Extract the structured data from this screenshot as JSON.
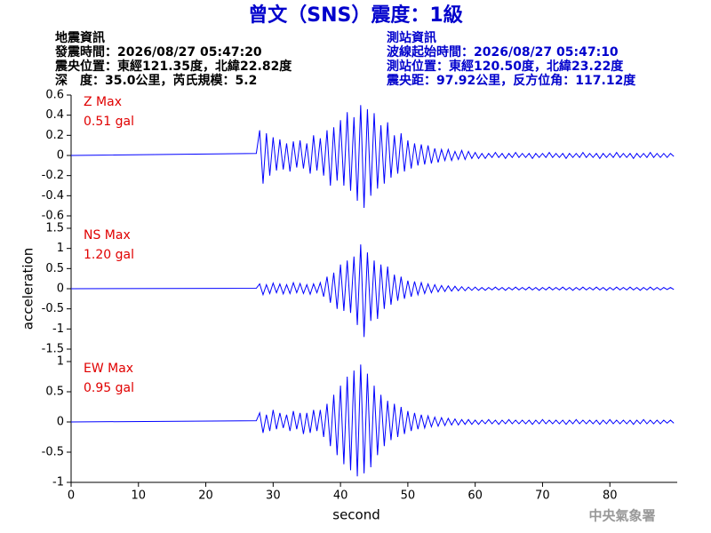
{
  "header": {
    "title": "曾文（SNS）震度：1級",
    "left": [
      "地震資訊",
      "發震時間：2026/08/27 05:47:20",
      "震央位置：東經121.35度，北緯22.82度",
      "深　度：35.0公里，芮氏規模：5.2"
    ],
    "right": [
      "測站資訊",
      "波線起始時間：2026/08/27 05:47:10",
      "測站位置：東經120.50度，北緯23.22度",
      "震央距：97.92公里，反方位角：117.12度"
    ]
  },
  "agency": "中央氣象署",
  "chart_data": [
    {
      "type": "line",
      "label": "Z Max",
      "peak_label": "0.51 gal",
      "color": "#0000ff",
      "xlim": [
        0,
        90
      ],
      "ylim": [
        -0.6,
        0.6
      ],
      "yticks": [
        0.6,
        0.4,
        0.2,
        0,
        -0.2,
        -0.4,
        -0.6
      ],
      "x": [
        0,
        27.5,
        28,
        28.5,
        29,
        29.5,
        30,
        30.5,
        31,
        31.5,
        32,
        32.5,
        33,
        33.5,
        34,
        34.5,
        35,
        35.5,
        36,
        36.5,
        37,
        37.5,
        38,
        38.5,
        39,
        39.5,
        40,
        40.5,
        41,
        41.5,
        42,
        42.5,
        43,
        43.5,
        44,
        44.5,
        45,
        45.5,
        46,
        46.5,
        47,
        47.5,
        48,
        48.5,
        49,
        49.5,
        50,
        50.5,
        51,
        51.5,
        52,
        52.5,
        53,
        53.5,
        54,
        54.5,
        55,
        55.5,
        56,
        56.5,
        57,
        57.5,
        58,
        58.5,
        59,
        59.5,
        60,
        60.5,
        61,
        61.5,
        62,
        62.5,
        63,
        63.5,
        64,
        64.5,
        65,
        65.5,
        66,
        66.5,
        67,
        67.5,
        68,
        68.5,
        69,
        69.5,
        70,
        70.5,
        71,
        71.5,
        72,
        72.5,
        73,
        73.5,
        74,
        74.5,
        75,
        75.5,
        76,
        76.5,
        77,
        77.5,
        78,
        78.5,
        79,
        79.5,
        80,
        80.5,
        81,
        81.5,
        82,
        82.5,
        83,
        83.5,
        84,
        84.5,
        85,
        85.5,
        86,
        86.5,
        87,
        87.5,
        88,
        88.5,
        89,
        89.5
      ],
      "values": [
        0,
        0.02,
        0.25,
        -0.28,
        0.22,
        -0.2,
        0.18,
        -0.15,
        0.16,
        -0.14,
        0.12,
        -0.16,
        0.14,
        -0.12,
        0.15,
        -0.13,
        0.12,
        -0.18,
        0.2,
        -0.15,
        0.17,
        -0.2,
        0.25,
        -0.3,
        0.28,
        -0.25,
        0.35,
        -0.3,
        0.43,
        -0.35,
        0.38,
        -0.45,
        0.5,
        -0.52,
        0.46,
        -0.4,
        0.42,
        -0.33,
        0.3,
        -0.28,
        0.33,
        -0.22,
        0.2,
        -0.18,
        0.22,
        -0.16,
        0.15,
        -0.13,
        0.12,
        -0.1,
        0.11,
        -0.09,
        0.1,
        -0.08,
        0.07,
        -0.07,
        0.06,
        -0.05,
        0.06,
        -0.05,
        0.04,
        -0.04,
        0.05,
        -0.04,
        0.04,
        -0.03,
        0.03,
        -0.03,
        0.02,
        -0.03,
        0.02,
        -0.02,
        0.03,
        -0.02,
        0.02,
        -0.03,
        0.02,
        -0.02,
        0.03,
        -0.02,
        0.02,
        -0.02,
        0.02,
        -0.03,
        0.02,
        -0.02,
        0.02,
        -0.02,
        0.03,
        -0.02,
        0.02,
        -0.02,
        0.02,
        -0.03,
        0.02,
        -0.02,
        0.02,
        -0.02,
        0.03,
        -0.02,
        0.02,
        -0.02,
        0.02,
        -0.03,
        0.02,
        -0.02,
        0.02,
        -0.02,
        0.03,
        -0.02,
        0.02,
        -0.02,
        0.02,
        -0.03,
        0.02,
        -0.02,
        0.02,
        -0.02,
        0.03,
        -0.02,
        0.02,
        -0.02,
        0.02,
        -0.02,
        0.02,
        -0.01
      ]
    },
    {
      "type": "line",
      "label": "NS Max",
      "peak_label": "1.20 gal",
      "color": "#0000ff",
      "ylabel": "acceleration",
      "xlim": [
        0,
        90
      ],
      "ylim": [
        -1.5,
        1.5
      ],
      "yticks": [
        1.5,
        1,
        0.5,
        0,
        -0.5,
        -1,
        -1.5
      ],
      "x": [
        0,
        27.5,
        28,
        28.5,
        29,
        29.5,
        30,
        30.5,
        31,
        31.5,
        32,
        32.5,
        33,
        33.5,
        34,
        34.5,
        35,
        35.5,
        36,
        36.5,
        37,
        37.5,
        38,
        38.5,
        39,
        39.5,
        40,
        40.5,
        41,
        41.5,
        42,
        42.5,
        43,
        43.5,
        44,
        44.5,
        45,
        45.5,
        46,
        46.5,
        47,
        47.5,
        48,
        48.5,
        49,
        49.5,
        50,
        50.5,
        51,
        51.5,
        52,
        52.5,
        53,
        53.5,
        54,
        54.5,
        55,
        55.5,
        56,
        56.5,
        57,
        57.5,
        58,
        58.5,
        59,
        59.5,
        60,
        60.5,
        61,
        61.5,
        62,
        62.5,
        63,
        63.5,
        64,
        64.5,
        65,
        65.5,
        66,
        66.5,
        67,
        67.5,
        68,
        68.5,
        69,
        69.5,
        70,
        70.5,
        71,
        71.5,
        72,
        72.5,
        73,
        73.5,
        74,
        74.5,
        75,
        75.5,
        76,
        76.5,
        77,
        77.5,
        78,
        78.5,
        79,
        79.5,
        80,
        80.5,
        81,
        81.5,
        82,
        82.5,
        83,
        83.5,
        84,
        84.5,
        85,
        85.5,
        86,
        86.5,
        87,
        87.5,
        88,
        88.5,
        89,
        89.5
      ],
      "values": [
        0,
        0.01,
        0.12,
        -0.15,
        0.1,
        -0.12,
        0.14,
        -0.1,
        0.12,
        -0.13,
        0.1,
        -0.12,
        0.15,
        -0.1,
        0.13,
        -0.12,
        0.1,
        -0.14,
        0.12,
        -0.1,
        0.15,
        -0.2,
        0.3,
        -0.35,
        0.4,
        -0.5,
        0.6,
        -0.55,
        0.7,
        -0.6,
        0.8,
        -0.9,
        1.1,
        -1.2,
        0.9,
        -0.8,
        0.7,
        -0.75,
        0.6,
        -0.5,
        0.55,
        -0.4,
        0.35,
        -0.3,
        0.3,
        -0.25,
        0.2,
        -0.2,
        0.18,
        -0.15,
        0.15,
        -0.12,
        0.12,
        -0.1,
        0.1,
        -0.08,
        0.08,
        -0.07,
        0.07,
        -0.06,
        0.06,
        -0.05,
        0.05,
        -0.05,
        0.04,
        -0.04,
        0.04,
        -0.04,
        0.03,
        -0.04,
        0.03,
        -0.03,
        0.04,
        -0.03,
        0.03,
        -0.04,
        0.03,
        -0.03,
        0.04,
        -0.03,
        0.03,
        -0.03,
        0.04,
        -0.03,
        0.03,
        -0.04,
        0.03,
        -0.03,
        0.04,
        -0.03,
        0.03,
        -0.03,
        0.04,
        -0.03,
        0.03,
        -0.04,
        0.03,
        -0.03,
        0.04,
        -0.03,
        0.03,
        -0.03,
        0.04,
        -0.03,
        0.03,
        -0.04,
        0.03,
        -0.03,
        0.04,
        -0.03,
        0.03,
        -0.03,
        0.04,
        -0.03,
        0.03,
        -0.04,
        0.03,
        -0.03,
        0.04,
        -0.03,
        0.03,
        -0.03,
        0.03,
        -0.02,
        0.03,
        -0.02
      ]
    },
    {
      "type": "line",
      "label": "EW Max",
      "peak_label": "0.95 gal",
      "color": "#0000ff",
      "xlabel": "second",
      "xlim": [
        0,
        90
      ],
      "xticks": [
        0,
        10,
        20,
        30,
        40,
        50,
        60,
        70,
        80
      ],
      "ylim": [
        -1,
        1
      ],
      "yticks": [
        1,
        0.5,
        0,
        -0.5,
        -1
      ],
      "x": [
        0,
        27.5,
        28,
        28.5,
        29,
        29.5,
        30,
        30.5,
        31,
        31.5,
        32,
        32.5,
        33,
        33.5,
        34,
        34.5,
        35,
        35.5,
        36,
        36.5,
        37,
        37.5,
        38,
        38.5,
        39,
        39.5,
        40,
        40.5,
        41,
        41.5,
        42,
        42.5,
        43,
        43.5,
        44,
        44.5,
        45,
        45.5,
        46,
        46.5,
        47,
        47.5,
        48,
        48.5,
        49,
        49.5,
        50,
        50.5,
        51,
        51.5,
        52,
        52.5,
        53,
        53.5,
        54,
        54.5,
        55,
        55.5,
        56,
        56.5,
        57,
        57.5,
        58,
        58.5,
        59,
        59.5,
        60,
        60.5,
        61,
        61.5,
        62,
        62.5,
        63,
        63.5,
        64,
        64.5,
        65,
        65.5,
        66,
        66.5,
        67,
        67.5,
        68,
        68.5,
        69,
        69.5,
        70,
        70.5,
        71,
        71.5,
        72,
        72.5,
        73,
        73.5,
        74,
        74.5,
        75,
        75.5,
        76,
        76.5,
        77,
        77.5,
        78,
        78.5,
        79,
        79.5,
        80,
        80.5,
        81,
        81.5,
        82,
        82.5,
        83,
        83.5,
        84,
        84.5,
        85,
        85.5,
        86,
        86.5,
        87,
        87.5,
        88,
        88.5,
        89,
        89.5
      ],
      "values": [
        0,
        0.02,
        0.15,
        -0.18,
        0.12,
        -0.15,
        0.2,
        -0.12,
        0.15,
        -0.1,
        0.12,
        -0.15,
        0.18,
        -0.12,
        0.15,
        -0.2,
        0.15,
        -0.18,
        0.2,
        -0.15,
        0.2,
        -0.25,
        0.3,
        -0.4,
        0.45,
        -0.55,
        0.6,
        -0.7,
        0.75,
        -0.8,
        0.85,
        -0.9,
        0.95,
        -0.85,
        0.8,
        -0.75,
        0.6,
        -0.55,
        0.45,
        -0.4,
        0.35,
        -0.3,
        0.3,
        -0.25,
        0.25,
        -0.2,
        0.18,
        -0.15,
        0.15,
        -0.12,
        0.12,
        -0.1,
        0.1,
        -0.08,
        0.08,
        -0.07,
        0.07,
        -0.06,
        0.06,
        -0.05,
        0.05,
        -0.05,
        0.04,
        -0.04,
        0.04,
        -0.04,
        0.03,
        -0.04,
        0.03,
        -0.03,
        0.04,
        -0.03,
        0.03,
        -0.04,
        0.03,
        -0.03,
        0.04,
        -0.03,
        0.03,
        -0.03,
        0.03,
        -0.03,
        0.03,
        -0.04,
        0.03,
        -0.03,
        0.04,
        -0.03,
        0.03,
        -0.03,
        0.03,
        -0.03,
        0.03,
        -0.04,
        0.03,
        -0.03,
        0.04,
        -0.03,
        0.03,
        -0.03,
        0.03,
        -0.03,
        0.03,
        -0.04,
        0.03,
        -0.03,
        0.04,
        -0.03,
        0.03,
        -0.03,
        0.03,
        -0.03,
        0.03,
        -0.04,
        0.03,
        -0.03,
        0.04,
        -0.03,
        0.03,
        -0.03,
        0.03,
        -0.03,
        0.03,
        -0.02,
        0.03,
        -0.02
      ]
    }
  ]
}
